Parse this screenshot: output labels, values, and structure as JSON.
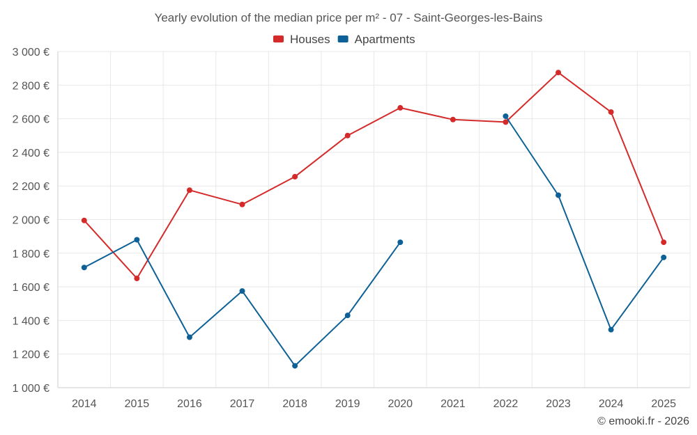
{
  "chart_data": {
    "type": "line",
    "title": "Yearly evolution of the median price per m² - 07 - Saint-Georges-les-Bains",
    "categories": [
      "2014",
      "2015",
      "2016",
      "2017",
      "2018",
      "2019",
      "2020",
      "2021",
      "2022",
      "2023",
      "2024",
      "2025"
    ],
    "series": [
      {
        "name": "Houses",
        "color": "#d42a2a",
        "values": [
          1995,
          1650,
          2175,
          2090,
          2255,
          2500,
          2665,
          2595,
          2580,
          2875,
          2640,
          1865
        ]
      },
      {
        "name": "Apartments",
        "color": "#0d6196",
        "values": [
          1715,
          1880,
          1300,
          1575,
          1130,
          1430,
          1865,
          null,
          2615,
          2145,
          1345,
          1775
        ]
      }
    ],
    "ylim": [
      1000,
      3000
    ],
    "yticks": [
      1000,
      1200,
      1400,
      1600,
      1800,
      2000,
      2200,
      2400,
      2600,
      2800,
      3000
    ],
    "ytick_labels": [
      "1 000 €",
      "1 200 €",
      "1 400 €",
      "1 600 €",
      "1 800 €",
      "2 000 €",
      "2 200 €",
      "2 400 €",
      "2 600 €",
      "2 800 €",
      "3 000 €"
    ],
    "xlabel": "",
    "ylabel": "",
    "grid": true,
    "legend": "top-center"
  },
  "credit": "© emooki.fr - 2026"
}
